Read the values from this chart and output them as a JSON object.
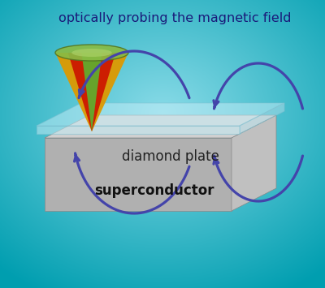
{
  "title": "optically probing the magnetic field",
  "label_diamond": "diamond plate",
  "label_superconductor": "superconductor",
  "arrow_color": "#4444aa",
  "title_color": "#1a1a7a",
  "label_diamond_color": "#222222",
  "label_sc_color": "#111111",
  "sc_top_color": "#d4d4d4",
  "sc_front_color": "#b8b8b8",
  "sc_side_color": "#c0c0c0",
  "dp_top_color": "#c8eaf0",
  "dp_front_color": "#b0dce8",
  "dp_side_color": "#a0d0de"
}
